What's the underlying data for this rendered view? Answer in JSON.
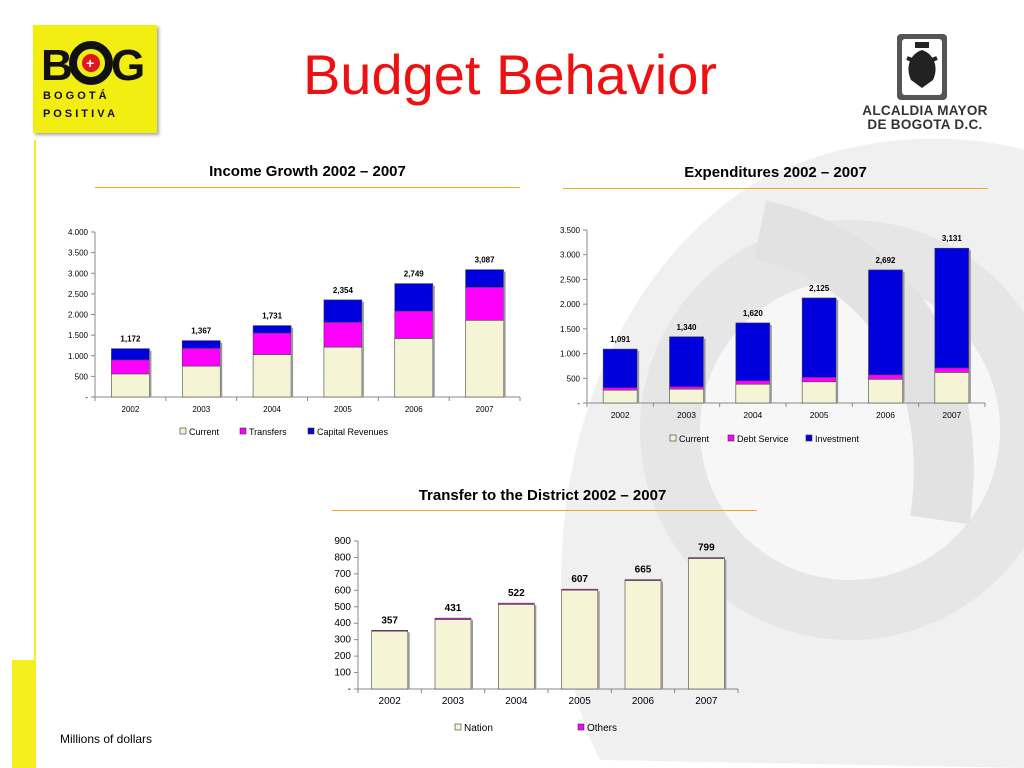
{
  "title": "Budget Behavior",
  "logo": {
    "main": "BOG",
    "plus": "+",
    "line1": "B O G O T Á",
    "line2": "P O S I T I V A"
  },
  "alcaldia": {
    "line1": "ALCALDIA MAYOR",
    "line2": "DE BOGOTA D.C.",
    "icon": "coat-of-arms-icon"
  },
  "note": "Millions of dollars",
  "colors": {
    "current": "#f5f5d6",
    "magenta": "#ff00ff",
    "blue": "#0000dd",
    "title_red": "#ee1111",
    "rule": "#f5a623"
  },
  "chart_data": [
    {
      "id": "income",
      "type": "bar",
      "stacked": true,
      "title": "Income Growth 2002 – 2007",
      "categories": [
        "2002",
        "2003",
        "2004",
        "2005",
        "2006",
        "2007"
      ],
      "series": [
        {
          "name": "Current",
          "values": [
            560,
            750,
            1030,
            1210,
            1420,
            1860
          ],
          "color": "#f5f5d6"
        },
        {
          "name": "Transfers",
          "values": [
            340,
            430,
            520,
            600,
            660,
            800
          ],
          "color": "#ff00ff"
        },
        {
          "name": "Capital Revenues",
          "values": [
            272,
            187,
            181,
            544,
            669,
            427
          ],
          "color": "#0000dd"
        }
      ],
      "totals": [
        "1,172",
        "1,367",
        "1,731",
        "2,354",
        "2,749",
        "3,087"
      ],
      "ylim": [
        0,
        4000
      ],
      "yticks": [
        0,
        500,
        1000,
        1500,
        2000,
        2500,
        3000,
        3500,
        4000
      ],
      "ytick_labels": [
        "-",
        "500",
        "1.000",
        "1.500",
        "2.000",
        "2.500",
        "3.000",
        "3.500",
        "4.000"
      ],
      "legend": "bottom"
    },
    {
      "id": "expend",
      "type": "bar",
      "stacked": true,
      "title": "Expenditures 2002 – 2007",
      "categories": [
        "2002",
        "2003",
        "2004",
        "2005",
        "2006",
        "2007"
      ],
      "series": [
        {
          "name": "Current",
          "values": [
            260,
            280,
            380,
            430,
            480,
            620
          ],
          "color": "#f5f5d6"
        },
        {
          "name": "Debt Service",
          "values": [
            50,
            50,
            70,
            90,
            90,
            90
          ],
          "color": "#ff00ff"
        },
        {
          "name": "Investment",
          "values": [
            781,
            1010,
            1170,
            1605,
            2122,
            2421
          ],
          "color": "#0000dd"
        }
      ],
      "totals": [
        "1,091",
        "1,340",
        "1,620",
        "2,125",
        "2,692",
        "3,131"
      ],
      "ylim": [
        0,
        3500
      ],
      "yticks": [
        0,
        500,
        1000,
        1500,
        2000,
        2500,
        3000,
        3500
      ],
      "ytick_labels": [
        "-",
        "500",
        "1.000",
        "1.500",
        "2.000",
        "2.500",
        "3.000",
        "3.500"
      ],
      "legend": "bottom"
    },
    {
      "id": "transfer",
      "type": "bar",
      "stacked": true,
      "title": "Transfer to the District 2002 – 2007",
      "categories": [
        "2002",
        "2003",
        "2004",
        "2005",
        "2006",
        "2007"
      ],
      "series": [
        {
          "name": "Nation",
          "values": [
            352,
            423,
            515,
            601,
            660,
            794
          ],
          "color": "#f5f5d6"
        },
        {
          "name": "Others",
          "values": [
            5,
            8,
            7,
            6,
            5,
            5
          ],
          "color": "#ff00ff"
        }
      ],
      "totals": [
        "357",
        "431",
        "522",
        "607",
        "665",
        "799"
      ],
      "ylim": [
        0,
        900
      ],
      "yticks": [
        0,
        100,
        200,
        300,
        400,
        500,
        600,
        700,
        800,
        900
      ],
      "ytick_labels": [
        "-",
        "100",
        "200",
        "300",
        "400",
        "500",
        "600",
        "700",
        "800",
        "900"
      ],
      "legend": "bottom"
    }
  ]
}
